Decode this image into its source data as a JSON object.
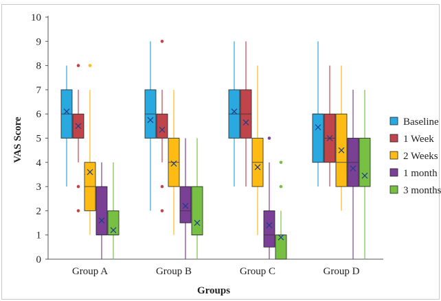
{
  "chart_data": {
    "type": "box",
    "xlabel": "Groups",
    "ylabel": "VAS Score",
    "ylim": [
      0,
      10
    ],
    "yticks": [
      0,
      1,
      2,
      3,
      4,
      5,
      6,
      7,
      8,
      9,
      10
    ],
    "grid": false,
    "legend_position": "right",
    "categories": [
      "Group A",
      "Group B",
      "Group C",
      "Group D"
    ],
    "series": [
      {
        "name": "Baseline",
        "color": "#2aa8e0",
        "boxes": [
          {
            "min": 3,
            "q1": 5,
            "median": 6,
            "q3": 7,
            "max": 8,
            "mean": 6.1,
            "outliers": []
          },
          {
            "min": 2,
            "q1": 5,
            "median": 6,
            "q3": 7,
            "max": 9,
            "mean": 5.75,
            "outliers": []
          },
          {
            "min": 3,
            "q1": 5,
            "median": 6,
            "q3": 7,
            "max": 9,
            "mean": 6.1,
            "outliers": []
          },
          {
            "min": 3,
            "q1": 4,
            "median": 6,
            "q3": 6,
            "max": 9,
            "mean": 5.45,
            "outliers": []
          }
        ]
      },
      {
        "name": "1 Week",
        "color": "#c0454a",
        "boxes": [
          {
            "min": 4,
            "q1": 5,
            "median": 5,
            "q3": 6,
            "max": 7,
            "mean": 5.5,
            "outliers": [
              8,
              3,
              2
            ]
          },
          {
            "min": 4,
            "q1": 5,
            "median": 5,
            "q3": 6,
            "max": 7,
            "mean": 5.35,
            "outliers": [
              9,
              3,
              2
            ]
          },
          {
            "min": 3,
            "q1": 5,
            "median": 6,
            "q3": 7,
            "max": 9,
            "mean": 5.65,
            "outliers": []
          },
          {
            "min": 3,
            "q1": 4,
            "median": 5,
            "q3": 6,
            "max": 8,
            "mean": 5.0,
            "outliers": []
          }
        ]
      },
      {
        "name": "2 Weeks",
        "color": "#fdbb14",
        "boxes": [
          {
            "min": 1,
            "q1": 2,
            "median": 3,
            "q3": 4,
            "max": 7,
            "mean": 3.6,
            "outliers": [
              8
            ]
          },
          {
            "min": 1,
            "q1": 3,
            "median": 4,
            "q3": 5,
            "max": 7,
            "mean": 3.95,
            "outliers": []
          },
          {
            "min": 1,
            "q1": 3,
            "median": 4,
            "q3": 5,
            "max": 8,
            "mean": 3.8,
            "outliers": []
          },
          {
            "min": 2,
            "q1": 3,
            "median": 4,
            "q3": 6,
            "max": 8,
            "mean": 4.5,
            "outliers": []
          }
        ]
      },
      {
        "name": "1 month",
        "color": "#7a4095",
        "boxes": [
          {
            "min": 0,
            "q1": 1,
            "median": 1,
            "q3": 3,
            "max": 4,
            "mean": 1.6,
            "outliers": []
          },
          {
            "min": 0,
            "q1": 1.5,
            "median": 2,
            "q3": 3,
            "max": 5,
            "mean": 2.2,
            "outliers": []
          },
          {
            "min": 0,
            "q1": 0.5,
            "median": 1,
            "q3": 2,
            "max": 4,
            "mean": 1.4,
            "outliers": [
              5
            ]
          },
          {
            "min": 0,
            "q1": 3,
            "median": 4,
            "q3": 5,
            "max": 7,
            "mean": 3.75,
            "outliers": []
          }
        ]
      },
      {
        "name": "3 months",
        "color": "#77c043",
        "boxes": [
          {
            "min": 0,
            "q1": 1,
            "median": 1,
            "q3": 2,
            "max": 4,
            "mean": 1.2,
            "outliers": []
          },
          {
            "min": 0,
            "q1": 1,
            "median": 1,
            "q3": 3,
            "max": 5,
            "mean": 1.5,
            "outliers": []
          },
          {
            "min": 0,
            "q1": 0,
            "median": 1,
            "q3": 1,
            "max": 2,
            "mean": 0.9,
            "outliers": [
              4,
              3
            ]
          },
          {
            "min": 0,
            "q1": 3,
            "median": 3,
            "q3": 5,
            "max": 7,
            "mean": 3.45,
            "outliers": []
          }
        ]
      }
    ]
  }
}
